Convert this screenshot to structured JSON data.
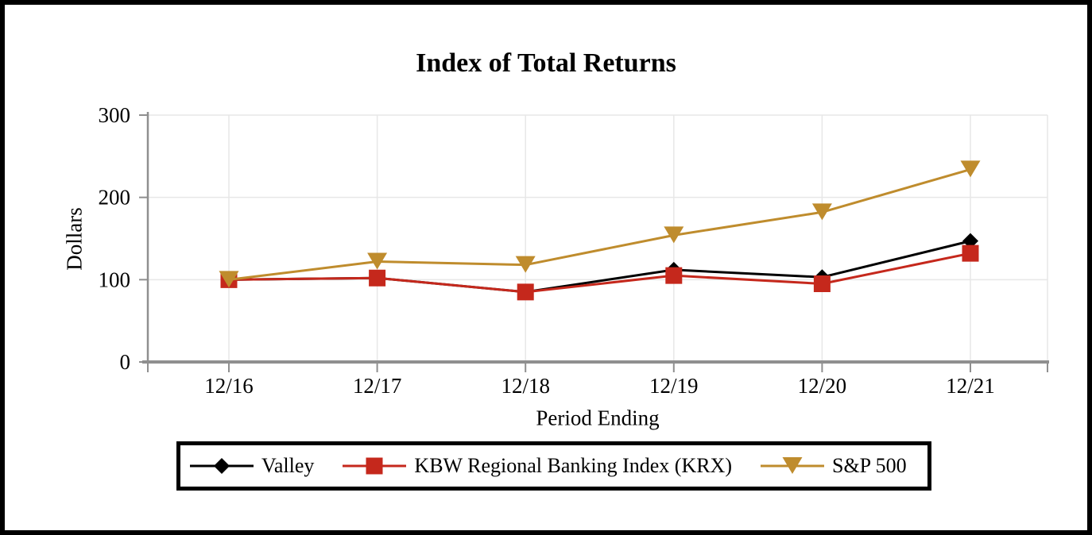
{
  "frame": {
    "background": "#ffffff",
    "border_color": "#000000"
  },
  "chart_data": {
    "type": "line",
    "title": "Index of Total Returns",
    "xlabel": "Period Ending",
    "ylabel": "Dollars",
    "categories": [
      "12/16",
      "12/17",
      "12/18",
      "12/19",
      "12/20",
      "12/21"
    ],
    "y_ticks": [
      0,
      100,
      200,
      300
    ],
    "ylim": [
      0,
      300
    ],
    "grid": true,
    "legend_position": "bottom",
    "legend_border_color": "#000000",
    "series": [
      {
        "name": "Valley",
        "color": "#000000",
        "marker": "diamond-icon",
        "values": [
          100,
          102,
          85,
          112,
          103,
          147
        ]
      },
      {
        "name": "KBW Regional Banking Index (KRX)",
        "color": "#c5281c",
        "marker": "square-icon",
        "values": [
          100,
          102,
          85,
          105,
          95,
          132
        ]
      },
      {
        "name": "S&P 500",
        "color": "#bf8c2d",
        "marker": "triangle-down-icon",
        "values": [
          100,
          122,
          118,
          154,
          182,
          234
        ]
      }
    ]
  }
}
